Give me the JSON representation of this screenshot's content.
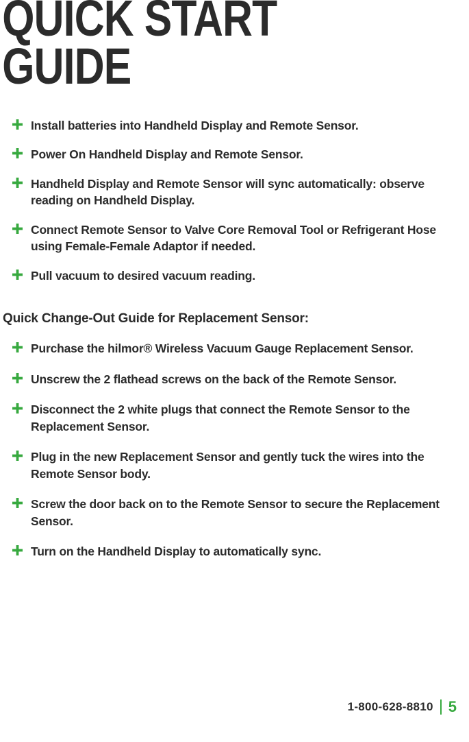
{
  "title": "QUICK START GUIDE",
  "icon_color": "#37a93f",
  "text_color": "#2b2b2b",
  "steps": [
    "Install batteries into Handheld Display and Remote Sensor.",
    "Power On Handheld Display and Remote Sensor.",
    "Handheld Display and Remote Sensor will sync automatically: observe reading on Handheld Display.",
    "Connect Remote Sensor to Valve Core Removal Tool or Refrigerant Hose using Female-Female Adaptor if needed.",
    "Pull vacuum to desired vacuum reading."
  ],
  "subheading": "Quick Change-Out Guide for Replacement Sensor:",
  "steps2": [
    "Purchase the hilmor® Wireless Vacuum Gauge Replacement Sensor.",
    "Unscrew the 2 flathead screws on the back of the Remote Sensor.",
    "Disconnect the 2 white plugs that connect the Remote Sensor to the Replacement Sensor.",
    "Plug in the new Replacement Sensor and gently tuck the wires into the Remote Sensor body.",
    "Screw the door back on to the Remote Sensor to secure the Replacement Sensor.",
    "Turn on the Handheld Display to automatically sync."
  ],
  "footer": {
    "phone": "1-800-628-8810",
    "page_number": "5",
    "accent_color": "#37a93f"
  }
}
